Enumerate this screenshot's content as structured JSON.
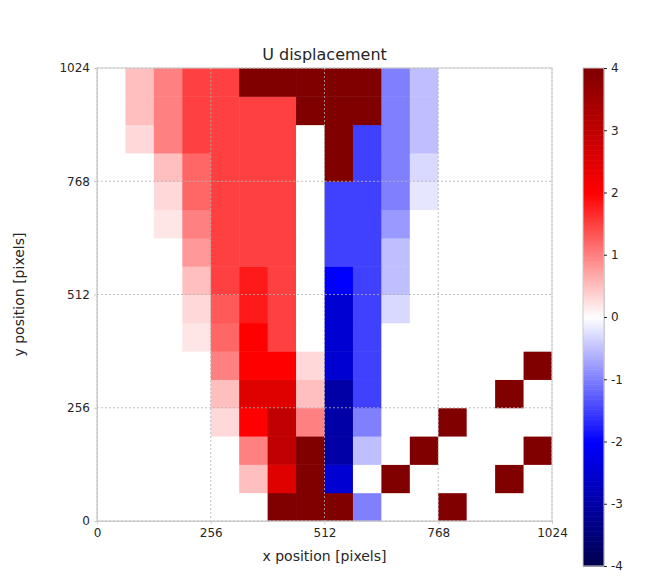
{
  "chart_data": {
    "type": "heatmap",
    "title": "U displacement",
    "x_label": "x position [pixels]",
    "y_label": "y position [pixels]",
    "xlim": [
      0,
      1024
    ],
    "ylim": [
      0,
      1024
    ],
    "xticks": [
      0,
      256,
      512,
      768,
      1024
    ],
    "yticks": [
      0,
      256,
      512,
      768,
      1024
    ],
    "grid": true,
    "x": [
      32,
      96,
      160,
      224,
      288,
      352,
      416,
      480,
      544,
      608,
      672,
      736,
      800,
      864,
      928,
      992
    ],
    "y": [
      32,
      96,
      160,
      224,
      288,
      352,
      416,
      480,
      544,
      608,
      672,
      736,
      800,
      864,
      928,
      992
    ],
    "z": [
      [
        0,
        0,
        0,
        0,
        0,
        0,
        4,
        4,
        4,
        -1,
        0,
        0,
        4,
        0,
        0,
        0
      ],
      [
        0,
        0,
        0,
        0,
        0,
        0.5,
        2.5,
        4,
        -2.5,
        0,
        4,
        0,
        0,
        0,
        4,
        0
      ],
      [
        0,
        0,
        0,
        0,
        0,
        1,
        3,
        4,
        -3,
        -0.5,
        0,
        4,
        0,
        0,
        0,
        4
      ],
      [
        0,
        0,
        0,
        0,
        0.3,
        2,
        3,
        1,
        -3,
        -1,
        0,
        0,
        4,
        0,
        0,
        0
      ],
      [
        0,
        0,
        0,
        0,
        0.5,
        2.5,
        2.5,
        0.5,
        -3,
        -1.5,
        0,
        0,
        0,
        0,
        4,
        0
      ],
      [
        0,
        0,
        0,
        0,
        1,
        2,
        2,
        0.3,
        -2.5,
        -1.5,
        0,
        0,
        0,
        0,
        0,
        4
      ],
      [
        0,
        0,
        0,
        0.2,
        1.2,
        2,
        1.5,
        0,
        -2.5,
        -1.5,
        0,
        0,
        0,
        0,
        0,
        0
      ],
      [
        0,
        0,
        0,
        0.3,
        1.3,
        1.8,
        1.5,
        0,
        -2.5,
        -1.5,
        -0.3,
        0,
        0,
        0,
        0,
        0
      ],
      [
        0,
        0,
        0,
        0.5,
        1.5,
        1.8,
        1.5,
        0,
        -2,
        -1.5,
        -0.5,
        0,
        0,
        0,
        0,
        0
      ],
      [
        0,
        0,
        0,
        0.8,
        1.5,
        1.5,
        1.5,
        0,
        -1.5,
        -1.5,
        -0.5,
        0,
        0,
        0,
        0,
        0
      ],
      [
        0,
        0,
        0.2,
        1,
        1.5,
        1.5,
        1.5,
        0,
        -1.5,
        -1.5,
        -0.8,
        0,
        0,
        0,
        0,
        0
      ],
      [
        0,
        0,
        0.3,
        1.2,
        1.5,
        1.5,
        1.5,
        0,
        -1.5,
        -1.5,
        -1,
        -0.2,
        0,
        0,
        0,
        0
      ],
      [
        0,
        0,
        0.5,
        1.2,
        1.5,
        1.5,
        1.5,
        0,
        4,
        -1.5,
        -1,
        -0.3,
        0,
        0,
        0,
        0
      ],
      [
        0,
        0.3,
        1,
        1.5,
        1.5,
        1.5,
        1.5,
        0,
        4,
        -1.5,
        -1,
        -0.5,
        0,
        0,
        0,
        0
      ],
      [
        0,
        0.5,
        1,
        1.5,
        1.5,
        1.5,
        1.5,
        4,
        4,
        4,
        -1,
        -0.5,
        0,
        0,
        0,
        0
      ],
      [
        0,
        0.5,
        1,
        1.5,
        1.5,
        4,
        4,
        4,
        4,
        4,
        -1,
        -0.5,
        0,
        0,
        0,
        0
      ]
    ],
    "colorbar": {
      "range": [
        -4,
        4
      ],
      "ticks": [
        -4,
        -3,
        -2,
        -1,
        0,
        1,
        2,
        3,
        4
      ]
    }
  }
}
